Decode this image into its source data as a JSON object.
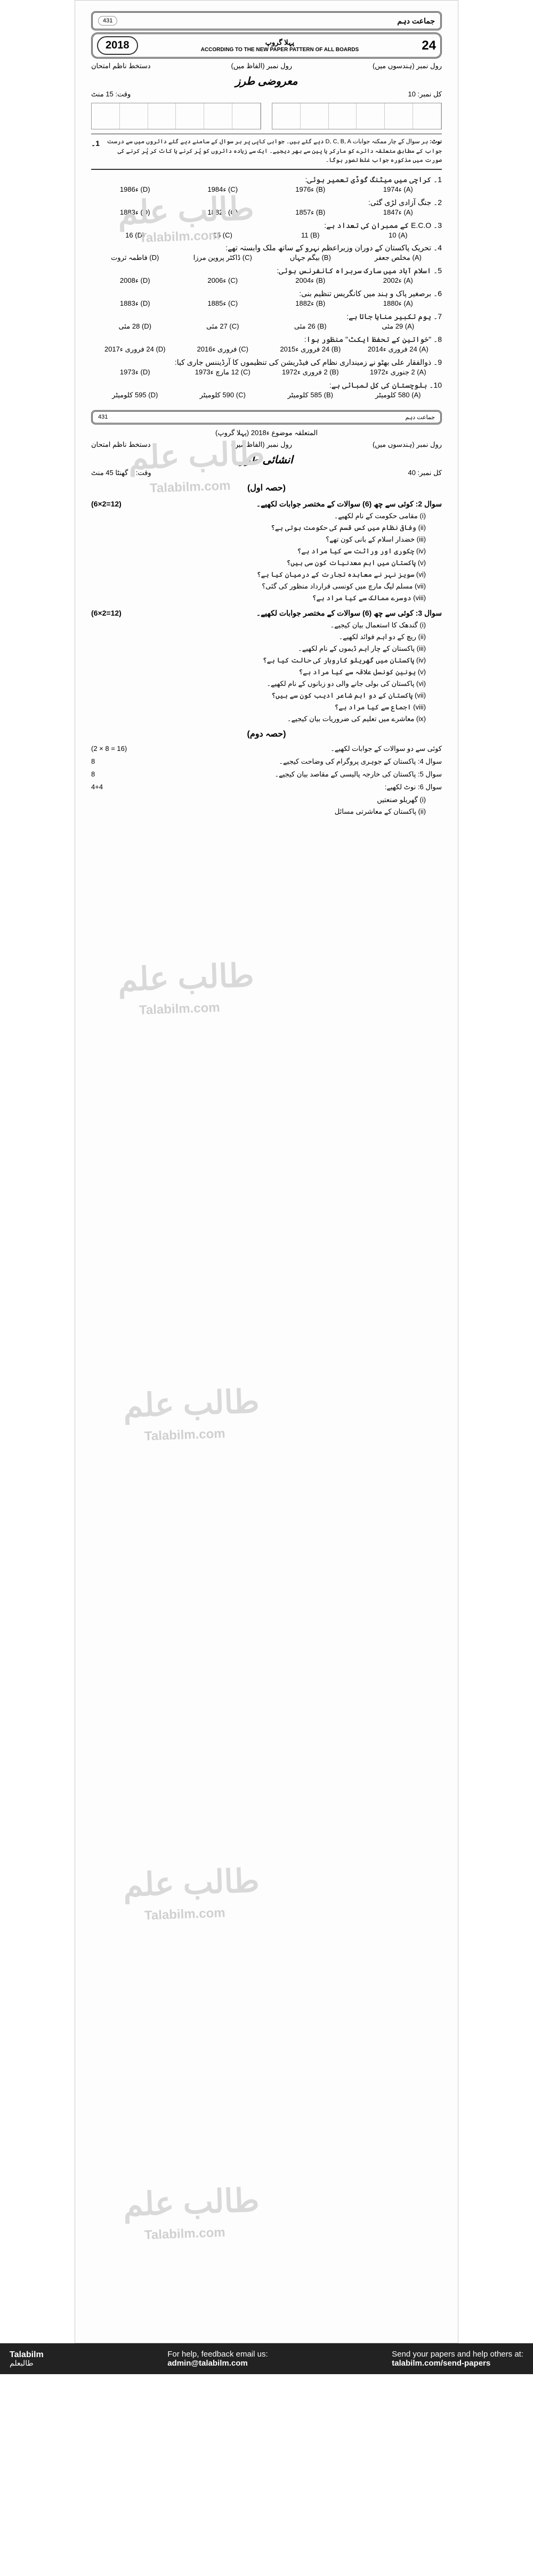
{
  "header": {
    "class_label": "جماعت دہم",
    "group_code": "431",
    "year": "2018",
    "board_pattern": "ACCORDING TO THE NEW PAPER PATTERN OF ALL BOARDS",
    "paper_num": "24",
    "paper_label": "پہلا گروپ"
  },
  "meta": {
    "roll_words": "رول نمبر (ہندسوں میں)",
    "roll_figures": "رول نمبر (الفاظ میں)",
    "sign_invig": "دستخط ناظم امتحان",
    "total_marks_label": "کل نمبر: 10",
    "time_label": "وقت: 15 منٹ",
    "objective_heading": "معروضی طرز",
    "instruction_note": "نوٹ:",
    "instruction_text": "ہر سوال کے چار ممکنہ جوابات D, C, B, A دیے گئے ہیں۔ جوابی کاپی پر ہر سوال کے سامنے دیے گئے دائروں میں سے درست جواب کے مطابق متعلقہ دائرے کو مارکر یا پین سے بھر دیجیے۔ ایک سے زیادہ دائروں کو پُر کرنے یا کاٹ کر پُر کرنے کی صورت میں مذکورہ جواب غلط تصور ہوگا۔",
    "q1_label": "1۔"
  },
  "mcqs": [
    {
      "q": "1۔ کراچی میں میٹنگ گوڈی تعمیر ہوئی:",
      "a": "(A) ء1974",
      "b": "(B) ء1976",
      "c": "(C) ء1984",
      "d": "(D) ء1986"
    },
    {
      "q": "2۔ جنگ آزادی لڑی گئی:",
      "a": "(A) ء1847",
      "b": "(B) ء1857",
      "c": "(C) ء1882",
      "d": "(D) ء1883"
    },
    {
      "q": "3۔ E.C.O کے ممبران کی تعداد ہے:",
      "a": "(A) 10",
      "b": "(B) 11",
      "c": "(C) 15",
      "d": "(D) 16"
    },
    {
      "q": "4۔ تحریک پاکستان کے دوران وزیراعظم نہرو کے ساتھ ملک وابستہ تھے:",
      "a": "(A) مخلص جعفر",
      "b": "(B) بیگم جہاں",
      "c": "(C) ڈاکٹر پروین مرزا",
      "d": "(D) فاطمہ ثروت"
    },
    {
      "q": "5۔ اسلام آباد میں سارک سربراہ کانفرنس ہوئی:",
      "a": "(A) ء2002",
      "b": "(B) ء2004",
      "c": "(C) ء2006",
      "d": "(D) ء2008"
    },
    {
      "q": "6۔ برصغیر پاک و ہند میں کانگریس تنظیم بنی:",
      "a": "(A) ء1880",
      "b": "(B) ء1882",
      "c": "(C) ء1885",
      "d": "(D) ء1883"
    },
    {
      "q": "7۔ یوم تکبیر منایا جاتا ہے:",
      "a": "(A) 29 مئی",
      "b": "(B) 26 مئی",
      "c": "(C) 27 مئی",
      "d": "(D) 28 مئی"
    },
    {
      "q": "8۔ \"خواتین کے تحفظ ایکٹ\" منظور ہوا:",
      "a": "(A) 24 فروری ء2014",
      "b": "(B) 24 فروری ء2015",
      "c": "(C) فروری ء2016",
      "d": "(D) 24 فروری ء2017"
    },
    {
      "q": "9۔ ذوالفقار علی بھٹو نے زمینداری نظام کی فیڈریشن کی تنظیموں کا آرڈیننس جاری کیا:",
      "a": "(A) 2 جنوری ء1972",
      "b": "(B) 2 فروری ء1972",
      "c": "(C) 12 مارچ ء1973",
      "d": "(D) ء1973"
    },
    {
      "q": "10۔ بلوچستان کی کل لمبائی ہے:",
      "a": "(A) 580 کلومیٹر",
      "b": "(B) 585 کلومیٹر",
      "c": "(C) 590 کلومیٹر",
      "d": "(D) 595 کلومیٹر"
    }
  ],
  "subjective": {
    "divider_code": "431",
    "divider_class": "جماعت دہم",
    "subject_line": "المتعلقہ موضوع ء2018 (پہلا گروپ)",
    "heading": "انشائی طرز",
    "total_marks": "کل نمبر: 40",
    "time": "وقت: 1 گھنٹا 45 منٹ",
    "part1_heading": "(حصہ اول)",
    "part2_heading": "(حصہ دوم)"
  },
  "q2": {
    "head": "سوال 2: کوئی سے چھ (6) سوالات کے مختصر جوابات لکھیے۔",
    "marks": "(6×2=12)",
    "subs": [
      "(i) مقامی حکومت کے نام لکھیے۔",
      "(ii) وفاقی نظام میں کس قسم کی حکومت ہوتی ہے؟",
      "(iii) خضدار اسلام کے بانی کون تھے؟",
      "(iv) چکوری اور وراثت سے کیا مراد ہے؟",
      "(v) پاکستان میں اہم معدنیات کون سی ہیں؟",
      "(vi) سویز نہر نے معاہدہ تجارت کے درمیان کیا ہے؟",
      "(vii) مسلم لیگ مارچ میں کونسی قرارداد منظور کی گئی؟",
      "(viii) دوسرے ممالک سے کیا مراد ہے؟"
    ]
  },
  "q3": {
    "head": "سوال 3: کوئی سے چھ (6) سوالات کے مختصر جوابات لکھیے۔",
    "marks": "(6×2=12)",
    "subs": [
      "(i) گندھک کا استعمال بیان کیجیے۔",
      "(ii) ریچ کے دو اہم فوائد لکھیے۔",
      "(iii) پاکستان کے چار اہم ڈیموں کے نام لکھیے۔",
      "(iv) پاکستان میں گھریلو کاروبار کی حالت کیا ہے؟",
      "(v) یونین کونسل علاقہ سے کیا مراد ہے؟",
      "(vi) پاکستان کی بولی جانے والی دو زبانوں کے نام لکھیے۔",
      "(vii) پاکستان کے دو اہم شاعر ادیب کون سے ہیں؟",
      "(viii) اجماع سے کیا مراد ہے؟",
      "(ix) معاشرے میں تعلیم کی ضروریات بیان کیجیے۔"
    ]
  },
  "long": [
    {
      "head": "کوئی سے دو سوالات کے جوابات لکھیے۔",
      "marks": "(2 × 8 = 16)"
    },
    {
      "head": "سوال 4: پاکستان کے جوہری پروگرام کی وضاحت کیجیے۔",
      "marks": "8"
    },
    {
      "head": "سوال 5: پاکستان کی خارجہ پالیسی کے مقاصد بیان کیجیے۔",
      "marks": "8"
    },
    {
      "head": "سوال 6: نوٹ لکھیے:",
      "marks": "4+4"
    }
  ],
  "notes": [
    "(i) گھریلو صنعتیں",
    "(ii) پاکستان کے معاشرتی مسائل"
  ],
  "watermarks": {
    "urdu": "طالب علم",
    "english": "Talabilm.com"
  },
  "footer": {
    "logo_en": "Talabilm",
    "logo_ur": "طالبعلم",
    "help_text": "For help, feedback email us:",
    "email": "admin@talabilm.com",
    "send_text": "Send your papers and help others at:",
    "send_link": "talabilm.com/send-papers"
  },
  "colors": {
    "page_bg": "#ffffff",
    "paper_bg": "#fdfdfd",
    "text": "#1a1a1a",
    "border": "#333333",
    "watermark": "#d9d9d9",
    "footer_bg": "#222222",
    "footer_text": "#ffffff"
  }
}
